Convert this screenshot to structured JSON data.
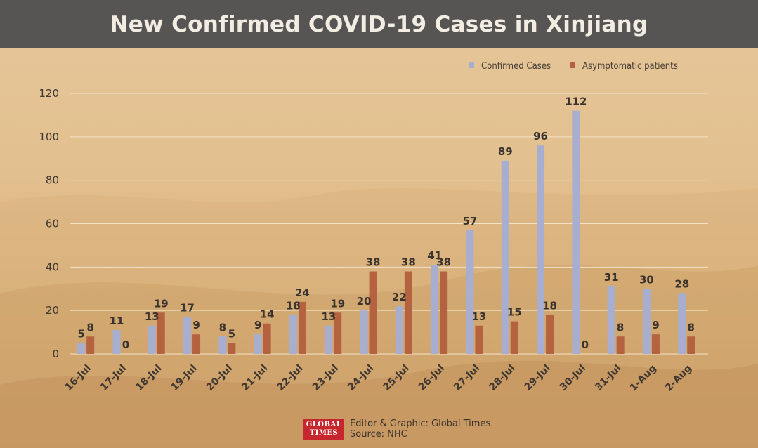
{
  "title": "New Confirmed COVID-19 Cases in Xinjiang",
  "footer": {
    "logo_line1": "GLOBAL",
    "logo_line2": "TIMES",
    "credit": "Editor & Graphic: Global Times",
    "source": "Source: NHC"
  },
  "colors": {
    "header_bg": "#575553",
    "confirmed": "#a7aed0",
    "asymptomatic": "#b4623f"
  },
  "chart_data": {
    "type": "bar",
    "title": "New Confirmed COVID-19 Cases in Xinjiang",
    "xlabel": "",
    "ylabel": "",
    "ylim": [
      0,
      120
    ],
    "yticks": [
      0,
      20,
      40,
      60,
      80,
      100,
      120
    ],
    "grid": true,
    "legend_position": "top-right",
    "categories": [
      "16-Jul",
      "17-Jul",
      "18-Jul",
      "19-Jul",
      "20-Jul",
      "21-Jul",
      "22-Jul",
      "23-Jul",
      "24-Jul",
      "25-Jul",
      "26-Jul",
      "27-Jul",
      "28-Jul",
      "29-Jul",
      "30-Jul",
      "31-Jul",
      "1-Aug",
      "2-Aug"
    ],
    "series": [
      {
        "name": "Confirmed Cases",
        "color": "#a7aed0",
        "values": [
          5,
          11,
          13,
          17,
          8,
          9,
          18,
          13,
          20,
          22,
          41,
          57,
          89,
          96,
          112,
          31,
          30,
          28
        ]
      },
      {
        "name": "Asymptomatic patients",
        "color": "#b4623f",
        "values": [
          8,
          0,
          19,
          9,
          5,
          14,
          24,
          19,
          38,
          38,
          38,
          13,
          15,
          18,
          0,
          8,
          9,
          8
        ]
      }
    ]
  }
}
